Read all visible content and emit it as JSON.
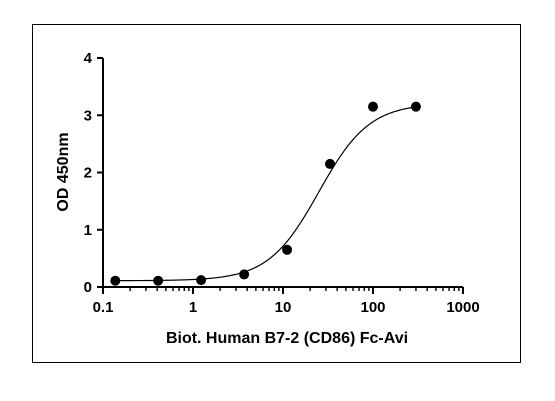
{
  "chart_data": {
    "type": "scatter",
    "title": "",
    "xlabel": "Biot. Human B7-2 (CD86) Fc-Avi",
    "ylabel": "OD 450nm",
    "xscale": "log",
    "xlim": [
      0.1,
      1000
    ],
    "ylim": [
      0,
      4
    ],
    "xticks": [
      0.1,
      1,
      10,
      100,
      1000
    ],
    "xtick_labels": [
      "0.1",
      "1",
      "10",
      "100",
      "1000"
    ],
    "yticks": [
      0,
      1,
      2,
      3,
      4
    ],
    "ytick_labels": [
      "0",
      "1",
      "2",
      "3",
      "4"
    ],
    "grid": false,
    "legend": "none",
    "series": [
      {
        "x": [
          0.137,
          0.41,
          1.23,
          3.7,
          11.1,
          33.3,
          100,
          300
        ],
        "y": [
          0.11,
          0.11,
          0.12,
          0.22,
          0.65,
          2.15,
          3.15,
          3.15
        ],
        "fit": "sigmoid",
        "color": "#000000"
      }
    ]
  }
}
